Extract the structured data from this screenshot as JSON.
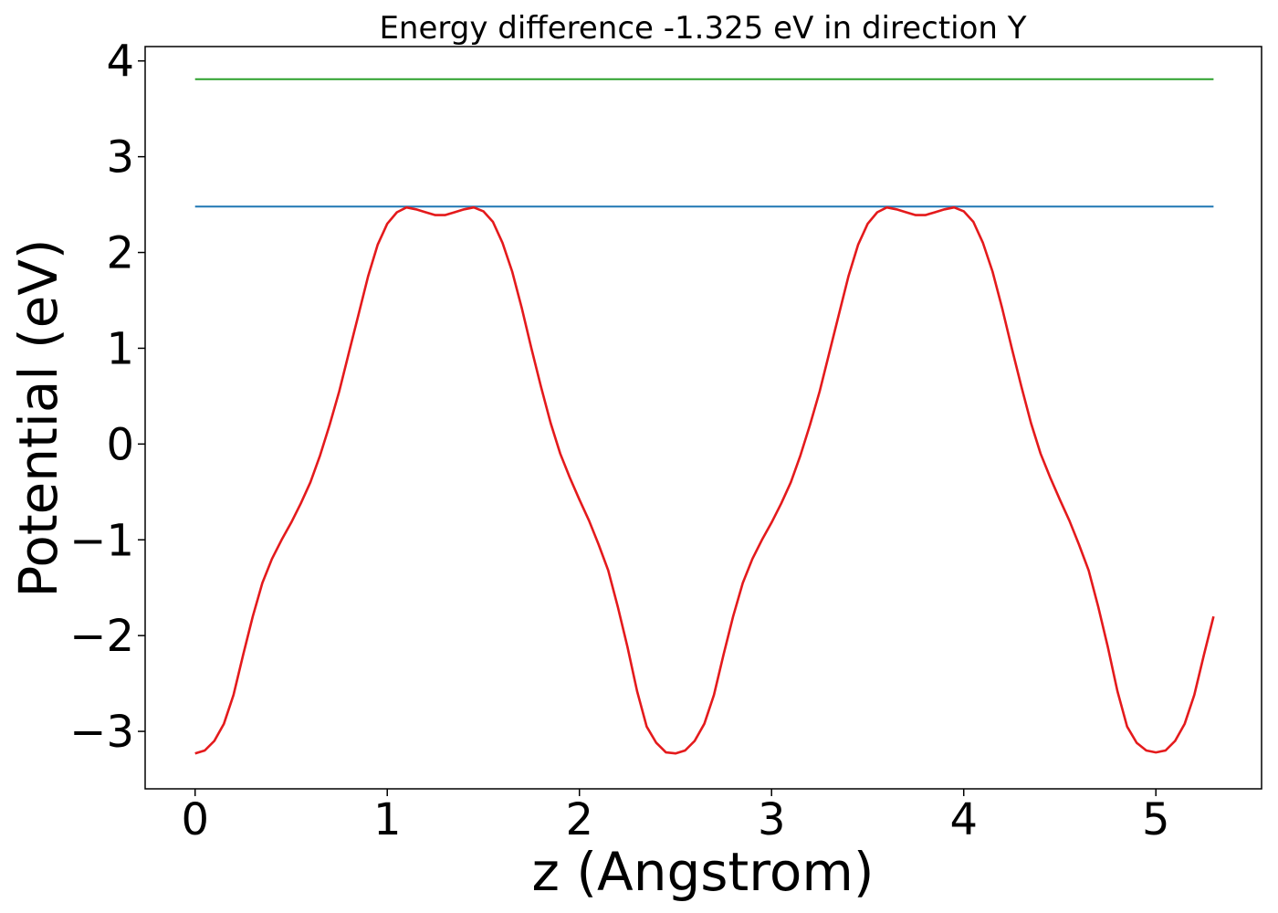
{
  "chart_data": {
    "type": "line",
    "title": "Energy difference -1.325 eV in direction Y",
    "xlabel": "z (Angstrom)",
    "ylabel": "Potential (eV)",
    "xlim": [
      -0.26,
      5.55
    ],
    "ylim": [
      -3.6,
      4.15
    ],
    "xticks": [
      0,
      1,
      2,
      3,
      4,
      5
    ],
    "xtick_labels": [
      "0",
      "1",
      "2",
      "3",
      "4",
      "5"
    ],
    "yticks": [
      -3,
      -2,
      -1,
      0,
      1,
      2,
      3,
      4
    ],
    "ytick_labels": [
      "−3",
      "−2",
      "−1",
      "0",
      "1",
      "2",
      "3",
      "4"
    ],
    "grid": false,
    "series": [
      {
        "color": "#2ca02c",
        "x": [
          0,
          5.3
        ],
        "y": [
          3.81,
          3.81
        ]
      },
      {
        "color": "#1f77b4",
        "x": [
          0,
          5.3
        ],
        "y": [
          2.48,
          2.48
        ]
      },
      {
        "color": "#e41a1c",
        "x": [
          0,
          0.05,
          0.1,
          0.15,
          0.2,
          0.25,
          0.3,
          0.35,
          0.4,
          0.45,
          0.5,
          0.55,
          0.6,
          0.65,
          0.7,
          0.75,
          0.8,
          0.85,
          0.9,
          0.95,
          1.0,
          1.05,
          1.1,
          1.15,
          1.2,
          1.25,
          1.3,
          1.35,
          1.4,
          1.45,
          1.5,
          1.55,
          1.6,
          1.65,
          1.7,
          1.75,
          1.8,
          1.85,
          1.9,
          1.95,
          2.0,
          2.05,
          2.1,
          2.15,
          2.2,
          2.25,
          2.3,
          2.35,
          2.4,
          2.45,
          2.5,
          2.55,
          2.6,
          2.65,
          2.7,
          2.75,
          2.8,
          2.85,
          2.9,
          2.95,
          3.0,
          3.05,
          3.1,
          3.15,
          3.2,
          3.25,
          3.3,
          3.35,
          3.4,
          3.45,
          3.5,
          3.55,
          3.6,
          3.65,
          3.7,
          3.75,
          3.8,
          3.85,
          3.9,
          3.95,
          4.0,
          4.05,
          4.1,
          4.15,
          4.2,
          4.25,
          4.3,
          4.35,
          4.4,
          4.45,
          4.5,
          4.55,
          4.6,
          4.65,
          4.7,
          4.75,
          4.8,
          4.85,
          4.9,
          4.95,
          5.0,
          5.05,
          5.1,
          5.15,
          5.2,
          5.25,
          5.3
        ],
        "y": [
          -3.23,
          -3.2,
          -3.1,
          -2.92,
          -2.62,
          -2.2,
          -1.8,
          -1.45,
          -1.2,
          -1.0,
          -0.82,
          -0.62,
          -0.4,
          -0.12,
          0.2,
          0.55,
          0.95,
          1.35,
          1.75,
          2.08,
          2.3,
          2.42,
          2.47,
          2.45,
          2.42,
          2.39,
          2.39,
          2.42,
          2.45,
          2.47,
          2.43,
          2.32,
          2.1,
          1.8,
          1.42,
          1.0,
          0.6,
          0.22,
          -0.1,
          -0.35,
          -0.58,
          -0.8,
          -1.05,
          -1.32,
          -1.7,
          -2.12,
          -2.58,
          -2.95,
          -3.12,
          -3.22,
          -3.23,
          -3.2,
          -3.1,
          -2.92,
          -2.62,
          -2.2,
          -1.8,
          -1.45,
          -1.2,
          -1.0,
          -0.82,
          -0.62,
          -0.4,
          -0.12,
          0.2,
          0.55,
          0.95,
          1.35,
          1.75,
          2.08,
          2.3,
          2.42,
          2.47,
          2.45,
          2.42,
          2.39,
          2.39,
          2.42,
          2.45,
          2.47,
          2.43,
          2.32,
          2.1,
          1.8,
          1.42,
          1.0,
          0.6,
          0.22,
          -0.1,
          -0.35,
          -0.58,
          -0.8,
          -1.05,
          -1.32,
          -1.7,
          -2.12,
          -2.58,
          -2.95,
          -3.12,
          -3.2,
          -3.22,
          -3.2,
          -3.1,
          -2.92,
          -2.62,
          -2.2,
          -1.8
        ]
      }
    ]
  }
}
